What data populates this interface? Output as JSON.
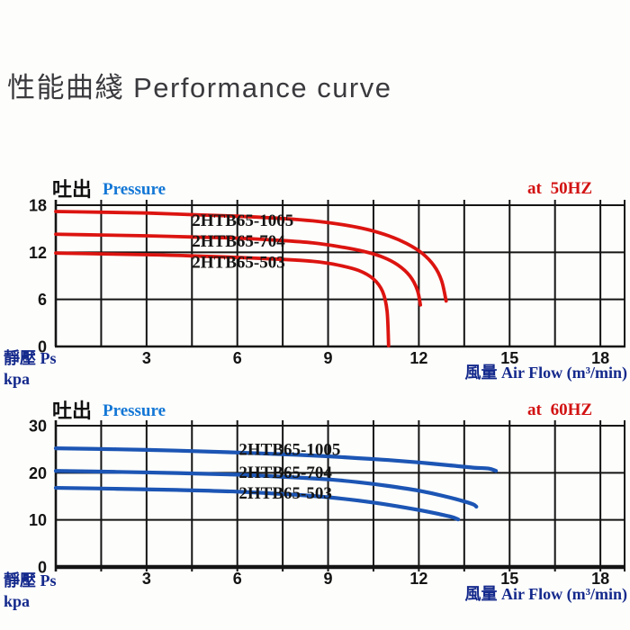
{
  "title": "性能曲綫 Performance curve",
  "theme": {
    "red_curve": "#dc1410",
    "red_text": "#d21212",
    "blue_curve": "#1c55b4",
    "blue_text": "#1377d6",
    "navy_axis_text": "#14298c",
    "grid_ink": "#141414",
    "title_gray": "#3a3a3e",
    "background": "#fdfdfb"
  },
  "chart_data": [
    {
      "type": "line",
      "title": "at 50HZ",
      "freq_label": "at 50HZ",
      "discharge_label": "吐出",
      "pressure_label": "Pressure",
      "y_axis_line1": "靜壓 Ps",
      "y_axis_line2": "kpa",
      "x_axis_cjk": "風量",
      "x_axis_en": "Air Flow (m³/min)",
      "xlabel": "風量 Air Flow (m³/min)",
      "ylabel": "靜壓 Ps kpa",
      "grid": true,
      "legend_position": "inline-labels",
      "xlim": [
        0,
        18.8
      ],
      "ylim": [
        0,
        18
      ],
      "x_ticks": [
        3,
        6,
        9,
        12,
        15,
        18
      ],
      "y_ticks": [
        0,
        6,
        12,
        18
      ],
      "x_grid_step": 1.5,
      "line_color": "#dc1410",
      "line_width": 3.8,
      "bottom_border_width": 2.4,
      "tick_below": 0,
      "series": [
        {
          "name": "2HTB65-1005",
          "label_at": [
            4.5,
            15.35
          ],
          "points": [
            [
              0,
              17.2
            ],
            [
              1.5,
              17.1
            ],
            [
              3,
              17.0
            ],
            [
              4.5,
              16.8
            ],
            [
              6,
              16.6
            ],
            [
              7.5,
              16.3
            ],
            [
              8.5,
              16.0
            ],
            [
              9.5,
              15.5
            ],
            [
              10.3,
              14.9
            ],
            [
              11,
              14.1
            ],
            [
              11.6,
              13.1
            ],
            [
              12.1,
              11.9
            ],
            [
              12.5,
              10.3
            ],
            [
              12.75,
              8.4
            ],
            [
              12.9,
              5.8
            ]
          ]
        },
        {
          "name": "2HTB65-704",
          "label_at": [
            4.5,
            12.7
          ],
          "points": [
            [
              0,
              14.3
            ],
            [
              1.5,
              14.2
            ],
            [
              3,
              14.1
            ],
            [
              4.5,
              13.95
            ],
            [
              6,
              13.8
            ],
            [
              7.5,
              13.5
            ],
            [
              8.5,
              13.2
            ],
            [
              9.4,
              12.7
            ],
            [
              10.2,
              12.1
            ],
            [
              10.8,
              11.4
            ],
            [
              11.3,
              10.4
            ],
            [
              11.7,
              9.0
            ],
            [
              11.95,
              7.2
            ],
            [
              12.05,
              5.3
            ]
          ]
        },
        {
          "name": "2HTB65-503",
          "label_at": [
            4.5,
            10.05
          ],
          "points": [
            [
              0,
              11.9
            ],
            [
              1.5,
              11.8
            ],
            [
              3,
              11.7
            ],
            [
              4.5,
              11.55
            ],
            [
              6,
              11.35
            ],
            [
              7.5,
              11.1
            ],
            [
              8.5,
              10.85
            ],
            [
              9.3,
              10.4
            ],
            [
              10,
              9.7
            ],
            [
              10.5,
              8.6
            ],
            [
              10.8,
              7.0
            ],
            [
              10.95,
              4.5
            ],
            [
              11.0,
              0.1
            ]
          ]
        }
      ]
    },
    {
      "type": "line",
      "title": "at 60HZ",
      "freq_label": "at 60HZ",
      "discharge_label": "吐出",
      "pressure_label": "Pressure",
      "y_axis_line1": "靜壓 Ps",
      "y_axis_line2": "kpa",
      "x_axis_cjk": "風量",
      "x_axis_en": "Air Flow (m³/min)",
      "xlabel": "風量 Air Flow (m³/min)",
      "ylabel": "靜壓 Ps kpa",
      "grid": true,
      "legend_position": "inline-labels",
      "xlim": [
        0,
        18.8
      ],
      "ylim": [
        0,
        30
      ],
      "x_ticks": [
        3,
        6,
        9,
        12,
        15,
        18
      ],
      "y_ticks": [
        0,
        10,
        20,
        30
      ],
      "x_grid_step": 1.5,
      "line_color": "#1c55b4",
      "line_width": 4.2,
      "bottom_border_width": 4.4,
      "tick_below": 5,
      "series": [
        {
          "name": "2HTB65-1005",
          "label_at": [
            6.05,
            23.8
          ],
          "points": [
            [
              0,
              25.2
            ],
            [
              2,
              25.0
            ],
            [
              4,
              24.7
            ],
            [
              6,
              24.3
            ],
            [
              8,
              23.8
            ],
            [
              9,
              23.5
            ],
            [
              10,
              23.1
            ],
            [
              11,
              22.7
            ],
            [
              12,
              22.2
            ],
            [
              13,
              21.6
            ],
            [
              13.8,
              21.1
            ],
            [
              14.3,
              20.9
            ],
            [
              14.55,
              20.4
            ]
          ]
        },
        {
          "name": "2HTB65-704",
          "label_at": [
            6.05,
            18.9
          ],
          "points": [
            [
              0,
              20.4
            ],
            [
              2,
              20.2
            ],
            [
              4,
              19.95
            ],
            [
              6,
              19.6
            ],
            [
              8,
              19.0
            ],
            [
              9,
              18.6
            ],
            [
              10,
              18.0
            ],
            [
              11,
              17.2
            ],
            [
              12,
              16.2
            ],
            [
              12.8,
              15.1
            ],
            [
              13.4,
              14.1
            ],
            [
              13.8,
              13.3
            ],
            [
              13.9,
              12.8
            ]
          ]
        },
        {
          "name": "2HTB65-503",
          "label_at": [
            6.05,
            14.5
          ],
          "points": [
            [
              0,
              16.8
            ],
            [
              2,
              16.6
            ],
            [
              4,
              16.35
            ],
            [
              6,
              16.0
            ],
            [
              8,
              15.3
            ],
            [
              9,
              14.8
            ],
            [
              10,
              14.1
            ],
            [
              11,
              13.2
            ],
            [
              12,
              12.1
            ],
            [
              12.7,
              11.2
            ],
            [
              13.1,
              10.6
            ],
            [
              13.3,
              10.1
            ]
          ]
        }
      ]
    }
  ]
}
